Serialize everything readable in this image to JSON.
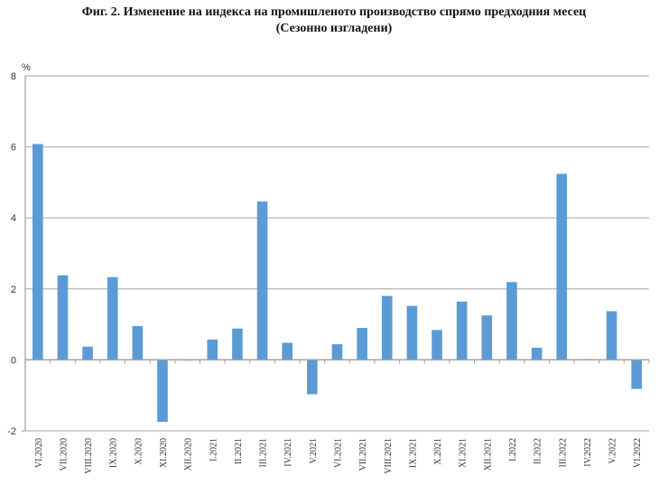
{
  "title": {
    "line1": "Фиг. 2. Изменение на индекса на промишленото производство спрямо предходния месец",
    "line2": "(Сезонно изгладени)"
  },
  "chart_data": {
    "type": "bar",
    "title": "Фиг. 2. Изменение на индекса на промишленото производство спрямо предходния месец (Сезонно изгладени)",
    "xlabel": "",
    "ylabel": "%",
    "ylim": [
      -2,
      8
    ],
    "yticks": [
      -2,
      0,
      2,
      4,
      6,
      8
    ],
    "grid": true,
    "legend": null,
    "bar_color": "#5b9bd5",
    "categories": [
      "VI.2020",
      "VII.2020",
      "VIII.2020",
      "IX.2020",
      "X.2020",
      "XI.2020",
      "XII.2020",
      "I.2021",
      "II.2021",
      "III.2021",
      "IV.2021",
      "V.2021",
      "VI.2021",
      "VII.2021",
      "VIII.2021",
      "IX.2021",
      "X.2021",
      "XI.2021",
      "XII.2021",
      "I.2022",
      "II.2022",
      "III.2022",
      "IV.2022",
      "V.2022",
      "VI.2022"
    ],
    "values": [
      6.08,
      2.38,
      0.37,
      2.33,
      0.95,
      -1.75,
      0.0,
      0.57,
      0.88,
      4.46,
      0.48,
      -0.97,
      0.44,
      0.9,
      1.8,
      1.52,
      0.84,
      1.64,
      1.25,
      2.19,
      0.34,
      5.24,
      0.02,
      1.37,
      -0.82
    ]
  }
}
